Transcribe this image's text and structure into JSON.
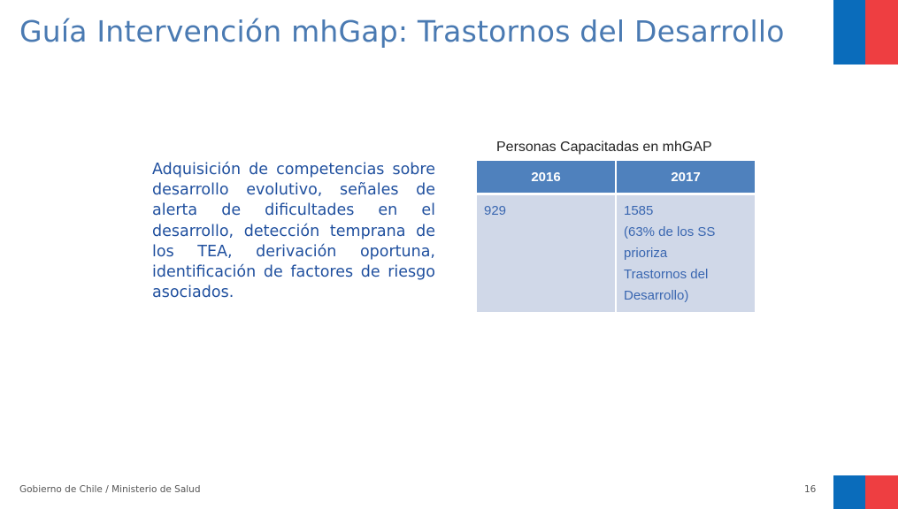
{
  "slide": {
    "title": "Guía Intervención mhGap: Trastornos del Desarrollo",
    "body_text": "Adquisición de competencias sobre desarrollo evolutivo, señales de alerta de dificultades en el desarrollo, detección temprana de los TEA, derivación oportuna, identificación de factores de riesgo asociados.",
    "footer_text": "Gobierno de Chile / Ministerio de Salud",
    "page_number": "16"
  },
  "table": {
    "caption": "Personas Capacitadas en mhGAP",
    "headers": [
      "2016",
      "2017"
    ],
    "row": {
      "col_2016": "929",
      "col_2017_lines": [
        "1585",
        "(63% de los SS",
        "prioriza",
        "Trastornos del",
        "Desarrollo)"
      ]
    }
  },
  "colors": {
    "title": "#4a7ab2",
    "body_text": "#1f4f9e",
    "table_header": "#4f81bd",
    "table_cell": "#d0d8e8",
    "flag_blue": "#0a6cbb",
    "flag_red": "#ee3e41"
  }
}
